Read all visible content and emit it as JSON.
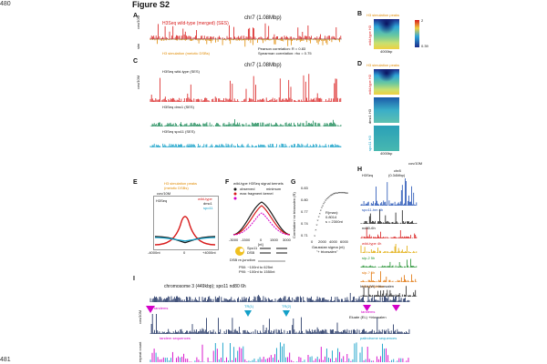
{
  "page": {
    "number_top": "480",
    "number_bottom": "481",
    "figure_title": "Figure S2"
  },
  "panelA": {
    "label": "A",
    "region": "chr7 (1.08Mbp)",
    "track_top": "H3Seq wild-type (merged) (SES)",
    "track_bottom": "H3 simulation (meiotic DSBs)",
    "pearson": "Pearson correlation:   R = 0.83",
    "spearman": "Spearman correlation:   rho = 0.75",
    "yaxis_top": "cov/10M",
    "yaxis_bottom": "sim"
  },
  "panelB": {
    "label": "B",
    "heading": "H3 simulation peaks",
    "row_label": "wild-type H3",
    "scale": "4000bp",
    "colorbar_top": "2",
    "colorbar_bottom": "0.39"
  },
  "panelC": {
    "label": "C",
    "region": "chr7 (1.08Mbp)",
    "track1": "H3Seq wild-type (SES)",
    "track2": "H3Seq dmc1 (SES)",
    "track3": "H3Seq spo11 (SES)",
    "yaxis": "cov/10M"
  },
  "panelD": {
    "label": "D",
    "heading": "H3 simulation peaks",
    "rows": [
      "wild-type H3",
      "dmc1 H3",
      "spo11 H3"
    ],
    "scale": "4000bp"
  },
  "panelE": {
    "label": "E",
    "heading1": "H3 simulation peaks",
    "heading2": "(meiotic DSBs)",
    "ylabel": "cov/10M",
    "track": "H3Seq",
    "legend": [
      "wild-type",
      "dmc1",
      "spo11"
    ],
    "xticks": [
      "-4000nt",
      "0",
      "+4000nt"
    ]
  },
  "panelF": {
    "label": "F",
    "heading": "wild-type H3Seq signal kernels",
    "legend": [
      "observed",
      "minimum",
      "max fragment kernel"
    ],
    "xlabel": "[nt]",
    "xticks": [
      "-3000",
      "-1500",
      "0",
      "1500",
      "3000"
    ],
    "spo_label": "Spo11",
    "dsb_label": "DSB",
    "resection": "DSB re-junction",
    "p50": "P50:   ~100nt to 625nt",
    "p90": "P90:   ~100nt to 1550nt"
  },
  "panelG": {
    "label": "G",
    "ylabel": "Correlation' no trioxsalen (R)",
    "xlabel": "Gaussian sigma (nt)",
    "xlabel2": "\"+ trioxsalen\"",
    "rmax": "R(max):",
    "rmax_value": "0.8014",
    "sigma_value": "s = 2300nt",
    "yticks": [
      "0.83",
      "0.80",
      "0.77",
      "0.74",
      "0.71"
    ],
    "xticks": [
      "0",
      "2000",
      "4000",
      "6000"
    ]
  },
  "panelH": {
    "label": "H",
    "region": "chr8",
    "region_size": "(0.34Mbp)",
    "ylabel": "cov/10M",
    "tracks": [
      "H3Seq",
      "spo11-hm 4h",
      "nd80-6h",
      "wild-type 4h",
      "sip-2 5h",
      "sip-? 5h",
      "H3 simulation"
    ],
    "colors": [
      "#1f4fb4",
      "#1a1a1a",
      "#d81b1b",
      "#e0a800",
      "#1f8f2f",
      "#e07000",
      "#222222"
    ]
  },
  "panelI": {
    "label": "I",
    "region": "chromosome 3 (449kbp);   spo11 nd80 6h",
    "input_label": "Input (W) +trioxsalen",
    "eluate_label": "Eluate (EL) +trioxsalen",
    "tandems": "tandems",
    "tandems2": "tandems",
    "tr1": "TR(1)",
    "tr2": "TR(2)",
    "tandem_sequences": "tandem sequences",
    "palindrome_sequences": "palindrome sequences",
    "ylabel": "cov/10M",
    "ylabel_bottom": "repeat count"
  },
  "colors": {
    "red": "#d81b1b",
    "orange": "#e08a00",
    "blue": "#1f4fb4",
    "cyan": "#14a0c8",
    "magenta": "#d400c8",
    "teal": "#1e8c8c",
    "navy": "#14285a"
  }
}
